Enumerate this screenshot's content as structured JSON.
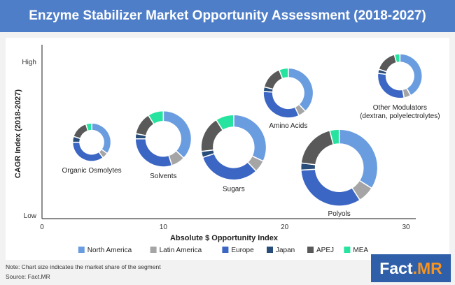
{
  "header": {
    "title": "Enzyme Stabilizer Market Opportunity Assessment (2018-2027)"
  },
  "colors": {
    "North America": "#6a9de0",
    "Latin America": "#a5a5a5",
    "Europe": "#3c66c3",
    "Japan": "#294d7a",
    "APEJ": "#595959",
    "MEA": "#27e3a0"
  },
  "chart_data": {
    "type": "bubble-donut",
    "xlabel": "Absolute $ Opportunity Index",
    "ylabel": "CAGR Index (2018-2027)",
    "xlim": [
      0,
      30
    ],
    "xticks": [
      "0",
      "10",
      "20",
      "30"
    ],
    "yticks": [
      "High",
      "Low"
    ],
    "legend": {
      "placement": "bottom",
      "entries": [
        "North America",
        "Latin America",
        "Europe",
        "Japan",
        "APEJ",
        "MEA"
      ]
    },
    "segments": [
      {
        "name": "Organic Osmolytes",
        "x": 4.1,
        "y": 0.45,
        "size": 0.5,
        "shares": [
          35,
          5,
          35,
          5,
          15,
          5
        ]
      },
      {
        "name": "Solvents",
        "x": 10.0,
        "y": 0.47,
        "size": 0.73,
        "shares": [
          37,
          8,
          30,
          3,
          13,
          9
        ]
      },
      {
        "name": "Sugars",
        "x": 15.8,
        "y": 0.42,
        "size": 0.85,
        "shares": [
          32,
          6,
          32,
          3,
          18,
          9
        ]
      },
      {
        "name": "Amino Acids",
        "x": 20.3,
        "y": 0.74,
        "size": 0.65,
        "shares": [
          38,
          5,
          33,
          3,
          15,
          6
        ]
      },
      {
        "name": "Polyols",
        "x": 24.5,
        "y": 0.3,
        "size": 1.0,
        "shares": [
          34,
          7,
          33,
          3,
          19,
          4
        ]
      },
      {
        "name": "Other Modulators\n(dextran, polyelectrolytes)",
        "x": 29.5,
        "y": 0.84,
        "size": 0.58,
        "shares": [
          42,
          5,
          30,
          3,
          16,
          4
        ]
      }
    ]
  },
  "footnote": "Note: Chart size indicates the market share of the segment",
  "source": "Source: Fact.MR",
  "logo": {
    "main": "Fact",
    "accent": ".MR"
  }
}
